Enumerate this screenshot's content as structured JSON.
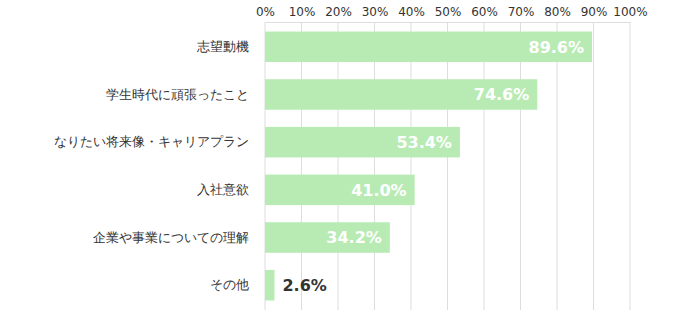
{
  "chart_data": {
    "type": "bar",
    "orientation": "horizontal",
    "categories": [
      "志望動機",
      "学生時代に頑張ったこと",
      "なりたい将来像・キャリアプラン",
      "入社意欲",
      "企業や事業についての理解",
      "その他"
    ],
    "values": [
      89.6,
      74.6,
      53.4,
      41.0,
      34.2,
      2.6
    ],
    "value_labels": [
      "89.6%",
      "74.6%",
      "53.4%",
      "41.0%",
      "34.2%",
      "2.6%"
    ],
    "color": "#b8ebb3",
    "xlim": [
      0,
      100
    ],
    "xticks": [
      {
        "value": 0,
        "label": "0%"
      },
      {
        "value": 10,
        "label": "10%"
      },
      {
        "value": 20,
        "label": "20%"
      },
      {
        "value": 30,
        "label": "30%"
      },
      {
        "value": 40,
        "label": "40%"
      },
      {
        "value": 50,
        "label": "50%"
      },
      {
        "value": 60,
        "label": "60%"
      },
      {
        "value": 70,
        "label": "70%"
      },
      {
        "value": 80,
        "label": "80%"
      },
      {
        "value": 90,
        "label": "90%"
      },
      {
        "value": 100,
        "label": "100%"
      }
    ],
    "grid": true,
    "data_labels": true
  }
}
